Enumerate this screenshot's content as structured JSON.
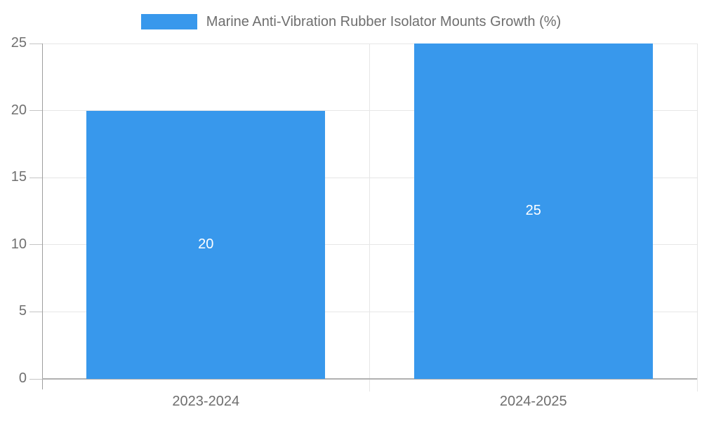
{
  "chart_data": {
    "type": "bar",
    "title": "Marine Anti-Vibration Rubber Isolator Mounts Growth (%)",
    "categories": [
      "2023-2024",
      "2024-2025"
    ],
    "series": [
      {
        "name": "Marine Anti-Vibration Rubber Isolator Mounts Growth (%)",
        "values": [
          20,
          25
        ]
      }
    ],
    "data_labels": [
      "20",
      "25"
    ],
    "y_ticks": [
      0,
      5,
      10,
      15,
      20,
      25
    ],
    "ylim": [
      0,
      25
    ],
    "xlabel": "",
    "ylabel": "",
    "grid": true,
    "legend_position": "top"
  },
  "legend": {
    "label": "Marine Anti-Vibration Rubber Isolator Mounts Growth (%)",
    "swatch_color": "#3898ec"
  },
  "colors": {
    "bar": "#3898ec",
    "grid": "#e6e6e6",
    "axis": "#b0b0b0",
    "tick": "#c4c4c4",
    "value_label": "#ffffff"
  }
}
